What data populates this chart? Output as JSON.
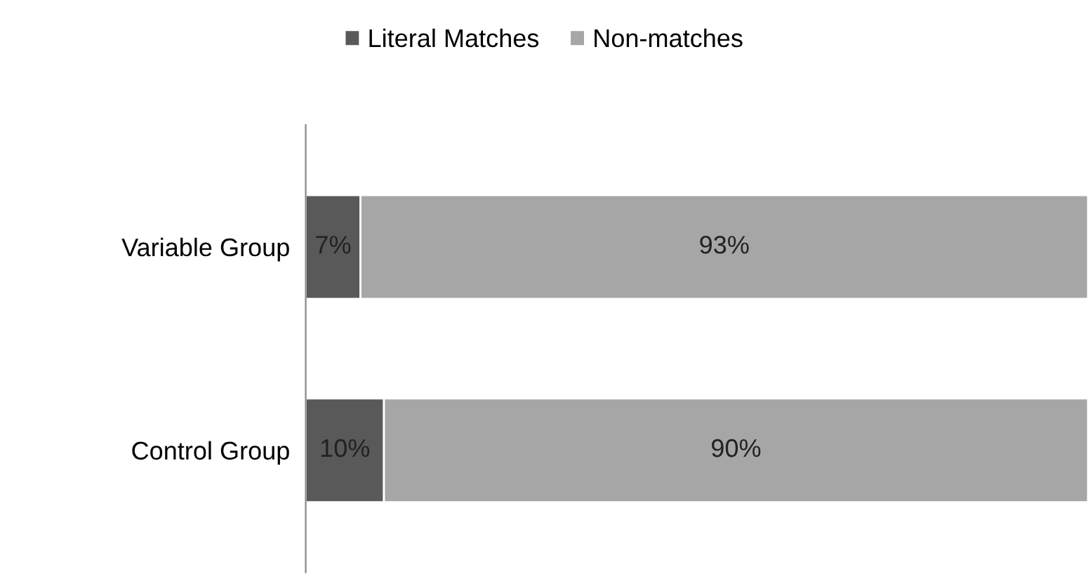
{
  "chart_data": {
    "type": "bar",
    "orientation": "horizontal",
    "stacked": true,
    "categories": [
      "Variable Group",
      "Control Group"
    ],
    "series": [
      {
        "name": "Literal Matches",
        "color": "#595959",
        "values": [
          7,
          10
        ],
        "value_labels": [
          "7%",
          "10%"
        ]
      },
      {
        "name": "Non-matches",
        "color": "#a6a6a6",
        "values": [
          93,
          90
        ],
        "value_labels": [
          "93%",
          "90%"
        ]
      }
    ],
    "xlim": [
      0,
      100
    ],
    "tick_labels": "y",
    "legend": "top",
    "grid": false
  }
}
